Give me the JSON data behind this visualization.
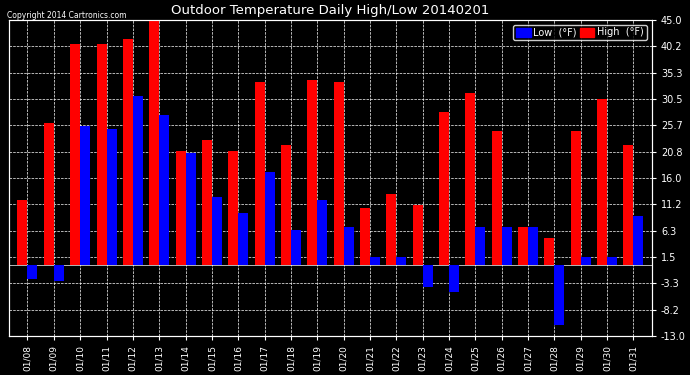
{
  "title": "Outdoor Temperature Daily High/Low 20140201",
  "copyright_text": "Copyright 2014 Cartronics.com",
  "legend_low": "Low  (°F)",
  "legend_high": "High  (°F)",
  "dates": [
    "01/08",
    "01/09",
    "01/10",
    "01/11",
    "01/12",
    "01/13",
    "01/14",
    "01/15",
    "01/16",
    "01/17",
    "01/18",
    "01/19",
    "01/20",
    "01/21",
    "01/22",
    "01/23",
    "01/24",
    "01/25",
    "01/26",
    "01/27",
    "01/28",
    "01/29",
    "01/30",
    "01/31"
  ],
  "high_vals": [
    12.0,
    26.0,
    40.5,
    40.5,
    41.5,
    46.0,
    21.0,
    23.0,
    21.0,
    33.5,
    22.0,
    34.0,
    33.5,
    10.5,
    13.0,
    11.0,
    28.0,
    31.5,
    24.5,
    7.0,
    5.0,
    24.5,
    30.5,
    22.0
  ],
  "low_vals": [
    -2.5,
    -3.0,
    25.5,
    25.0,
    31.0,
    27.5,
    20.5,
    12.5,
    9.5,
    17.0,
    6.5,
    12.0,
    7.0,
    1.5,
    1.5,
    -4.0,
    -5.0,
    7.0,
    7.0,
    7.0,
    -11.0,
    1.5,
    1.5,
    9.0
  ],
  "high_color": "#ff0000",
  "low_color": "#0000ff",
  "bg_color": "#000000",
  "plot_bg": "#000000",
  "grid_color": "#ffffff",
  "text_color": "#ffffff",
  "ylim": [
    -13.0,
    45.0
  ],
  "yticks": [
    45.0,
    40.2,
    35.3,
    30.5,
    25.7,
    20.8,
    16.0,
    11.2,
    6.3,
    1.5,
    -3.3,
    -8.2,
    -13.0
  ]
}
